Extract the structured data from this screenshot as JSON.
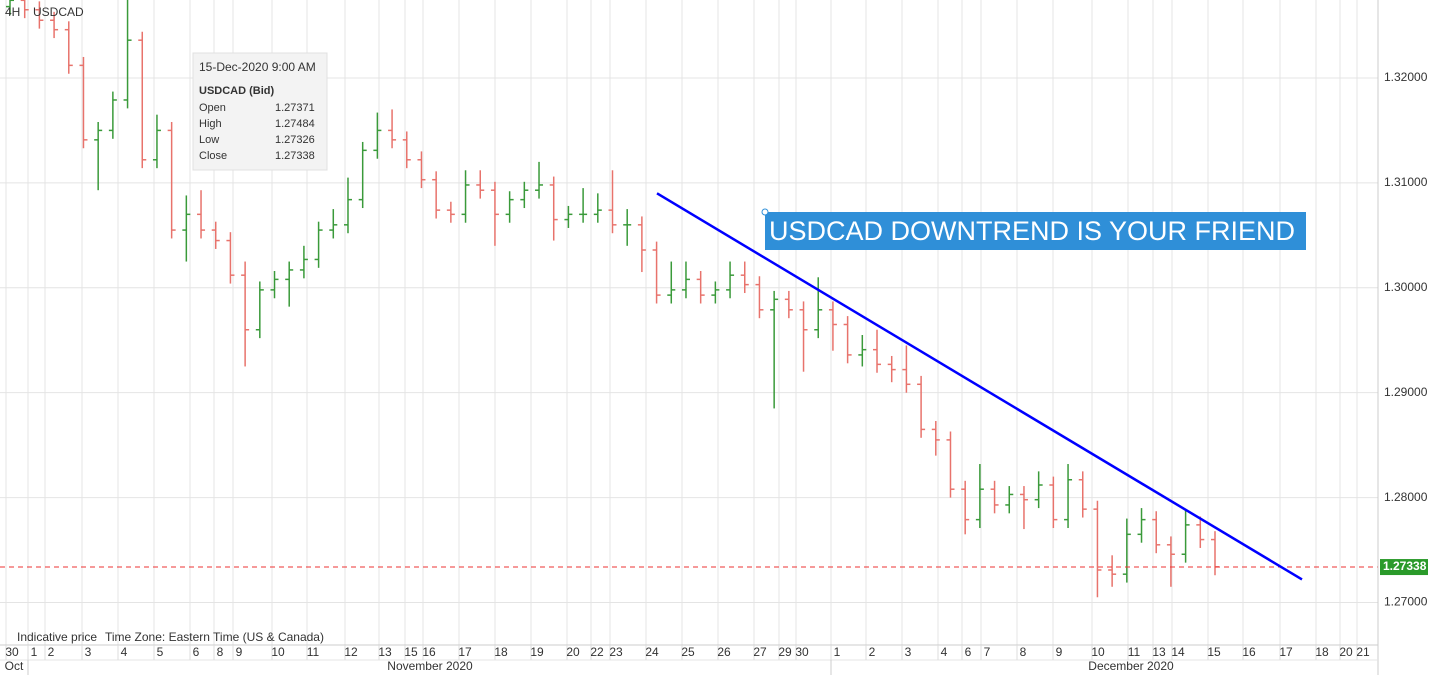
{
  "chart_data": {
    "type": "ohlc",
    "timeframe": "4H",
    "symbol": "USDCAD",
    "footer": [
      "Indicative price",
      "Time Zone: Eastern Time (US & Canada)"
    ],
    "annotation": "USDCAD DOWNTREND IS YOUR FRIEND",
    "tooltip": {
      "date": "15-Dec-2020 9:00 AM",
      "title": "USDCAD (Bid)",
      "rows": [
        [
          "Open",
          1.27371
        ],
        [
          "High",
          1.27484
        ],
        [
          "Low",
          1.27326
        ],
        [
          "Close",
          1.27338
        ]
      ]
    },
    "last_price": 1.27338,
    "up_color": "#3a9a3a",
    "down_color": "#e8736c",
    "trendline": {
      "color": "#0000ff",
      "values": [
        1.309,
        1.2722
      ]
    },
    "ylim": [
      1.26595,
      1.32743
    ],
    "yticks": [
      {
        "value": 1.27,
        "label": "1.27000"
      },
      {
        "value": 1.28,
        "label": "1.28000"
      },
      {
        "value": 1.29,
        "label": "1.29000"
      },
      {
        "value": 1.3,
        "label": "1.30000"
      },
      {
        "value": 1.31,
        "label": "1.31000"
      },
      {
        "value": 1.32,
        "label": "1.32000"
      }
    ],
    "grid": true,
    "x_day_labels": [
      "30",
      "1",
      "2",
      "3",
      "4",
      "5",
      "6",
      "8",
      "9",
      "10",
      "11",
      "12",
      "13",
      "15",
      "16",
      "17",
      "18",
      "19",
      "20",
      "22",
      "23",
      "24",
      "25",
      "26",
      "27",
      "29",
      "30",
      "1",
      "2",
      "3",
      "4",
      "6",
      "7",
      "8",
      "9",
      "10",
      "11",
      "13",
      "14",
      "15",
      "16",
      "17",
      "18",
      "20",
      "21"
    ],
    "x_month_labels": [
      "Oct",
      "November 2020",
      "December 2020"
    ],
    "series": {
      "open": [
        1.3268,
        1.3274,
        1.3265,
        1.3255,
        1.3246,
        1.3212,
        1.3141,
        1.315,
        1.3179,
        1.3236,
        1.3122,
        1.315,
        1.3055,
        1.307,
        1.3055,
        1.3045,
        1.3012,
        1.296,
        1.2998,
        1.3008,
        1.3017,
        1.3027,
        1.3055,
        1.306,
        1.3084,
        1.3131,
        1.315,
        1.3141,
        1.3122,
        1.3103,
        1.3074,
        1.307,
        1.3098,
        1.3093,
        1.307,
        1.3084,
        1.3093,
        1.3098,
        1.3065,
        1.307,
        1.307,
        1.3074,
        1.306,
        1.306,
        1.3036,
        1.2993,
        1.2998,
        1.3008,
        1.2993,
        1.2998,
        1.3012,
        1.3003,
        1.2979,
        1.2989,
        1.2979,
        1.296,
        1.2979,
        1.2965,
        1.2936,
        1.2941,
        1.2927,
        1.2922,
        1.2908,
        1.2865,
        1.2855,
        1.2808,
        1.2779,
        1.2808,
        1.2793,
        1.2803,
        1.2798,
        1.2812,
        1.2779,
        1.2817,
        1.2789,
        1.2731,
        1.2727,
        1.2765,
        1.2779,
        1.2755,
        1.2746,
        1.2774,
        1.276
      ],
      "high": [
        1.3282,
        1.3282,
        1.3273,
        1.3263,
        1.3254,
        1.322,
        1.3158,
        1.3187,
        1.329,
        1.3244,
        1.3165,
        1.3158,
        1.3088,
        1.3093,
        1.3063,
        1.3053,
        1.3025,
        1.3006,
        1.3016,
        1.3025,
        1.304,
        1.3063,
        1.3075,
        1.3105,
        1.3139,
        1.3167,
        1.317,
        1.3149,
        1.313,
        1.3111,
        1.3082,
        1.3112,
        1.3112,
        1.3101,
        1.3092,
        1.3101,
        1.312,
        1.3106,
        1.3078,
        1.3095,
        1.309,
        1.3112,
        1.3075,
        1.3068,
        1.3044,
        1.3025,
        1.3025,
        1.3016,
        1.3006,
        1.3025,
        1.3025,
        1.3011,
        1.2997,
        1.2997,
        1.2987,
        1.301,
        1.2987,
        1.2973,
        1.2955,
        1.296,
        1.2935,
        1.2945,
        1.2916,
        1.2873,
        1.2863,
        1.2816,
        1.2832,
        1.2816,
        1.2811,
        1.2811,
        1.2825,
        1.282,
        1.2832,
        1.2825,
        1.2797,
        1.2745,
        1.278,
        1.279,
        1.2787,
        1.2763,
        1.2788,
        1.2782,
        1.2768
      ],
      "low": [
        1.326,
        1.3257,
        1.3247,
        1.3238,
        1.3204,
        1.3133,
        1.3093,
        1.3142,
        1.3171,
        1.3114,
        1.3114,
        1.3047,
        1.3025,
        1.3047,
        1.3037,
        1.3004,
        1.2925,
        1.2952,
        1.299,
        1.2982,
        1.3009,
        1.3019,
        1.3047,
        1.3052,
        1.3076,
        1.3123,
        1.3133,
        1.3114,
        1.3095,
        1.3066,
        1.3062,
        1.3062,
        1.3085,
        1.304,
        1.3062,
        1.3076,
        1.3085,
        1.3045,
        1.3057,
        1.3062,
        1.3062,
        1.3052,
        1.304,
        1.3015,
        1.2985,
        1.2985,
        1.299,
        1.2985,
        1.2985,
        1.299,
        1.2995,
        1.2971,
        1.2885,
        1.2971,
        1.292,
        1.2952,
        1.294,
        1.2928,
        1.2925,
        1.2919,
        1.291,
        1.29,
        1.2857,
        1.284,
        1.28,
        1.2765,
        1.2771,
        1.2785,
        1.2785,
        1.277,
        1.279,
        1.2771,
        1.2771,
        1.2781,
        1.2705,
        1.2715,
        1.2719,
        1.2757,
        1.2747,
        1.2715,
        1.2738,
        1.2752,
        1.2726
      ],
      "close": [
        1.3274,
        1.3265,
        1.3255,
        1.3246,
        1.3212,
        1.3141,
        1.315,
        1.3179,
        1.3236,
        1.3122,
        1.315,
        1.3055,
        1.307,
        1.3055,
        1.3045,
        1.3012,
        1.296,
        1.2998,
        1.3008,
        1.3017,
        1.3027,
        1.3055,
        1.306,
        1.3084,
        1.3131,
        1.315,
        1.3141,
        1.3122,
        1.3103,
        1.3074,
        1.307,
        1.3098,
        1.3093,
        1.307,
        1.3084,
        1.3093,
        1.3098,
        1.3065,
        1.307,
        1.307,
        1.3074,
        1.306,
        1.306,
        1.3036,
        1.2993,
        1.2998,
        1.3008,
        1.2993,
        1.2998,
        1.3012,
        1.3003,
        1.2979,
        1.2989,
        1.2979,
        1.296,
        1.2979,
        1.2965,
        1.2936,
        1.2941,
        1.2927,
        1.2922,
        1.2908,
        1.2865,
        1.2855,
        1.2808,
        1.2779,
        1.2808,
        1.2793,
        1.2803,
        1.2798,
        1.2812,
        1.2779,
        1.2817,
        1.2789,
        1.2731,
        1.2727,
        1.2765,
        1.2779,
        1.2755,
        1.2746,
        1.2774,
        1.276,
        1.2734
      ]
    }
  }
}
